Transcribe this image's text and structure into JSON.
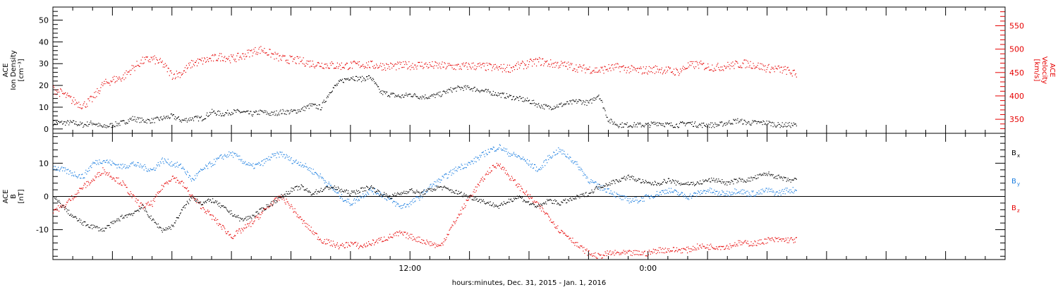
{
  "chart_data": [
    {
      "type": "scatter",
      "panel": "top",
      "ylabel_left": [
        "ACE",
        "Ion Density",
        "[cm⁻³]"
      ],
      "ylabel_right": [
        "ACE",
        "Velocity",
        "[km/s]"
      ],
      "ylim_left": [
        -2,
        56
      ],
      "yticks_left": [
        0,
        10,
        20,
        30,
        40,
        50
      ],
      "ylim_right": [
        320,
        590
      ],
      "yticks_right": [
        350,
        400,
        450,
        500,
        550
      ],
      "series": [
        {
          "axis": "left",
          "color": "#000000",
          "x": [
            0,
            0.5,
            1,
            1.5,
            2,
            2.5,
            3,
            3.5,
            4,
            4.5,
            5,
            5.5,
            6,
            6.5,
            7,
            7.5,
            8,
            8.5,
            9,
            9.5,
            10,
            10.5,
            11,
            11.5,
            12,
            12.5,
            13,
            13.5,
            14,
            14.5,
            15,
            15.5,
            16,
            16.5,
            17,
            17.5,
            18,
            18.5,
            19,
            19.5,
            20,
            20.5,
            21,
            21.5,
            22,
            22.5,
            23,
            23.5,
            24,
            24.5,
            25,
            25.5,
            26,
            26.5,
            27,
            27.5,
            28,
            28.5,
            29,
            29.5,
            30,
            30.5,
            31,
            31.5,
            32,
            32.5,
            33,
            33.5,
            34,
            34.5,
            35,
            35.5,
            36,
            36.5,
            37,
            37.5
          ],
          "y": [
            3,
            3,
            3,
            2,
            3,
            1,
            2,
            3,
            5,
            4,
            4,
            5,
            6,
            4,
            5,
            5,
            8,
            7,
            8,
            8,
            7,
            8,
            7,
            8,
            8,
            9,
            11,
            10,
            18,
            22,
            24,
            23,
            24,
            17,
            16,
            15,
            16,
            15,
            15,
            16,
            18,
            19,
            19,
            18,
            17,
            16,
            15,
            14,
            13,
            11,
            10,
            11,
            12,
            13,
            12,
            16,
            4,
            2,
            2,
            2,
            2,
            3,
            2,
            2,
            3,
            2,
            2,
            2,
            3,
            4,
            3,
            3,
            3,
            2,
            2,
            2
          ]
        },
        {
          "axis": "right",
          "color": "#e60000",
          "x": [
            0,
            0.5,
            1,
            1.5,
            2,
            2.5,
            3,
            3.5,
            4,
            4.5,
            5,
            5.5,
            6,
            6.5,
            7,
            7.5,
            8,
            8.5,
            9,
            9.5,
            10,
            10.5,
            11,
            11.5,
            12,
            12.5,
            13,
            13.5,
            14,
            14.5,
            15,
            15.5,
            16,
            16.5,
            17,
            17.5,
            18,
            18.5,
            19,
            19.5,
            20,
            20.5,
            21,
            21.5,
            22,
            22.5,
            23,
            23.5,
            24,
            24.5,
            25,
            25.5,
            26,
            26.5,
            27,
            27.5,
            28,
            28.5,
            29,
            29.5,
            30,
            30.5,
            31,
            31.5,
            32,
            32.5,
            33,
            33.5,
            34,
            34.5,
            35,
            35.5,
            36,
            36.5,
            37,
            37.5
          ],
          "y": [
            415,
            405,
            390,
            380,
            395,
            425,
            435,
            440,
            460,
            475,
            480,
            470,
            445,
            450,
            470,
            475,
            480,
            485,
            480,
            485,
            495,
            500,
            490,
            480,
            478,
            475,
            470,
            468,
            466,
            465,
            466,
            468,
            467,
            465,
            464,
            465,
            466,
            467,
            466,
            465,
            464,
            463,
            465,
            464,
            462,
            460,
            460,
            465,
            470,
            475,
            470,
            468,
            465,
            460,
            458,
            455,
            460,
            462,
            458,
            455,
            456,
            458,
            455,
            452,
            465,
            468,
            463,
            462,
            465,
            468,
            470,
            465,
            460,
            458,
            455,
            445
          ]
        }
      ]
    },
    {
      "type": "scatter",
      "panel": "bottom",
      "ylabel_left": [
        "ACE",
        "B",
        "[nT]"
      ],
      "ylim": [
        -19,
        19
      ],
      "yticks": [
        -10,
        0,
        10
      ],
      "zero_line": true,
      "xlabel": "hours:minutes, Dec. 31, 2015 - Jan.  1, 2016",
      "xlim": [
        0,
        48
      ],
      "xticks": [
        {
          "x": 18,
          "label": "12:00"
        },
        {
          "x": 30,
          "label": "0:00"
        }
      ],
      "legend": [
        {
          "label": "B",
          "sub": "x",
          "color": "#000000"
        },
        {
          "label": "B",
          "sub": "y",
          "color": "#1a7de0"
        },
        {
          "label": "B",
          "sub": "z",
          "color": "#e60000"
        }
      ],
      "series": [
        {
          "name": "Bx",
          "color": "#000000",
          "x": [
            0,
            0.5,
            1,
            1.5,
            2,
            2.5,
            3,
            3.5,
            4,
            4.5,
            5,
            5.5,
            6,
            6.5,
            7,
            7.5,
            8,
            8.5,
            9,
            9.5,
            10,
            10.5,
            11,
            11.5,
            12,
            12.5,
            13,
            13.5,
            14,
            14.5,
            15,
            15.5,
            16,
            16.5,
            17,
            17.5,
            18,
            18.5,
            19,
            19.5,
            20,
            20.5,
            21,
            21.5,
            22,
            22.5,
            23,
            23.5,
            24,
            24.5,
            25,
            25.5,
            26,
            26.5,
            27,
            27.5,
            28,
            28.5,
            29,
            29.5,
            30,
            30.5,
            31,
            31.5,
            32,
            32.5,
            33,
            33.5,
            34,
            34.5,
            35,
            35.5,
            36,
            36.5,
            37,
            37.5
          ],
          "y": [
            0,
            -3,
            -6,
            -8,
            -9,
            -10,
            -8,
            -6,
            -5,
            -3,
            -7,
            -10,
            -9,
            -4,
            0,
            -2,
            -1,
            -3,
            -5,
            -7,
            -6,
            -4,
            -2,
            0,
            2,
            3,
            1,
            2,
            3,
            2,
            1,
            2,
            3,
            1,
            0,
            1,
            2,
            1,
            2,
            3,
            2,
            1,
            0,
            -1,
            -2,
            -3,
            -1,
            0,
            -2,
            -3,
            -1,
            -2,
            -1,
            0,
            1,
            3,
            4,
            5,
            6,
            5,
            4,
            4,
            5,
            4,
            4,
            4,
            5,
            5,
            4,
            5,
            5,
            6,
            7,
            6,
            5,
            5
          ]
        },
        {
          "name": "By",
          "color": "#1a7de0",
          "x": [
            0,
            0.5,
            1,
            1.5,
            2,
            2.5,
            3,
            3.5,
            4,
            4.5,
            5,
            5.5,
            6,
            6.5,
            7,
            7.5,
            8,
            8.5,
            9,
            9.5,
            10,
            10.5,
            11,
            11.5,
            12,
            12.5,
            13,
            13.5,
            14,
            14.5,
            15,
            15.5,
            16,
            16.5,
            17,
            17.5,
            18,
            18.5,
            19,
            19.5,
            20,
            20.5,
            21,
            21.5,
            22,
            22.5,
            23,
            23.5,
            24,
            24.5,
            25,
            25.5,
            26,
            26.5,
            27,
            27.5,
            28,
            28.5,
            29,
            29.5,
            30,
            30.5,
            31,
            31.5,
            32,
            32.5,
            33,
            33.5,
            34,
            34.5,
            35,
            35.5,
            36,
            36.5,
            37,
            37.5
          ],
          "y": [
            9,
            8,
            7,
            6,
            10,
            11,
            10,
            9,
            10,
            9,
            8,
            11,
            10,
            9,
            5,
            8,
            10,
            12,
            13,
            11,
            9,
            10,
            12,
            13,
            11,
            10,
            8,
            6,
            3,
            0,
            -2,
            0,
            2,
            1,
            -1,
            -3,
            -2,
            0,
            3,
            5,
            7,
            9,
            10,
            12,
            14,
            15,
            13,
            12,
            10,
            8,
            12,
            14,
            12,
            9,
            5,
            3,
            2,
            0,
            -1,
            -1,
            0,
            1,
            2,
            1,
            0,
            1,
            2,
            1,
            1,
            2,
            1,
            1,
            2,
            1,
            2,
            2
          ]
        },
        {
          "name": "Bz",
          "color": "#e60000",
          "x": [
            0,
            0.5,
            1,
            1.5,
            2,
            2.5,
            3,
            3.5,
            4,
            4.5,
            5,
            5.5,
            6,
            6.5,
            7,
            7.5,
            8,
            8.5,
            9,
            9.5,
            10,
            10.5,
            11,
            11.5,
            12,
            12.5,
            13,
            13.5,
            14,
            14.5,
            15,
            15.5,
            16,
            16.5,
            17,
            17.5,
            18,
            18.5,
            19,
            19.5,
            20,
            20.5,
            21,
            21.5,
            22,
            22.5,
            23,
            23.5,
            24,
            24.5,
            25,
            25.5,
            26,
            26.5,
            27,
            27.5,
            28,
            28.5,
            29,
            29.5,
            30,
            30.5,
            31,
            31.5,
            32,
            32.5,
            33,
            33.5,
            34,
            34.5,
            35,
            35.5,
            36,
            36.5,
            37,
            37.5
          ],
          "y": [
            -4,
            -3,
            0,
            3,
            5,
            8,
            6,
            4,
            0,
            -3,
            -2,
            3,
            6,
            4,
            0,
            -3,
            -6,
            -9,
            -12,
            -10,
            -8,
            -5,
            -2,
            0,
            -3,
            -7,
            -10,
            -13,
            -14,
            -15,
            -14,
            -15,
            -14,
            -13,
            -12,
            -11,
            -12,
            -13,
            -14,
            -15,
            -10,
            -5,
            0,
            4,
            8,
            10,
            6,
            3,
            0,
            -3,
            -6,
            -10,
            -12,
            -15,
            -17,
            -18,
            -17,
            -17,
            -17,
            -17,
            -17,
            -16,
            -16,
            -16,
            -16,
            -15,
            -15,
            -15,
            -15,
            -14,
            -14,
            -14,
            -13,
            -13,
            -13,
            -13
          ]
        }
      ]
    }
  ]
}
